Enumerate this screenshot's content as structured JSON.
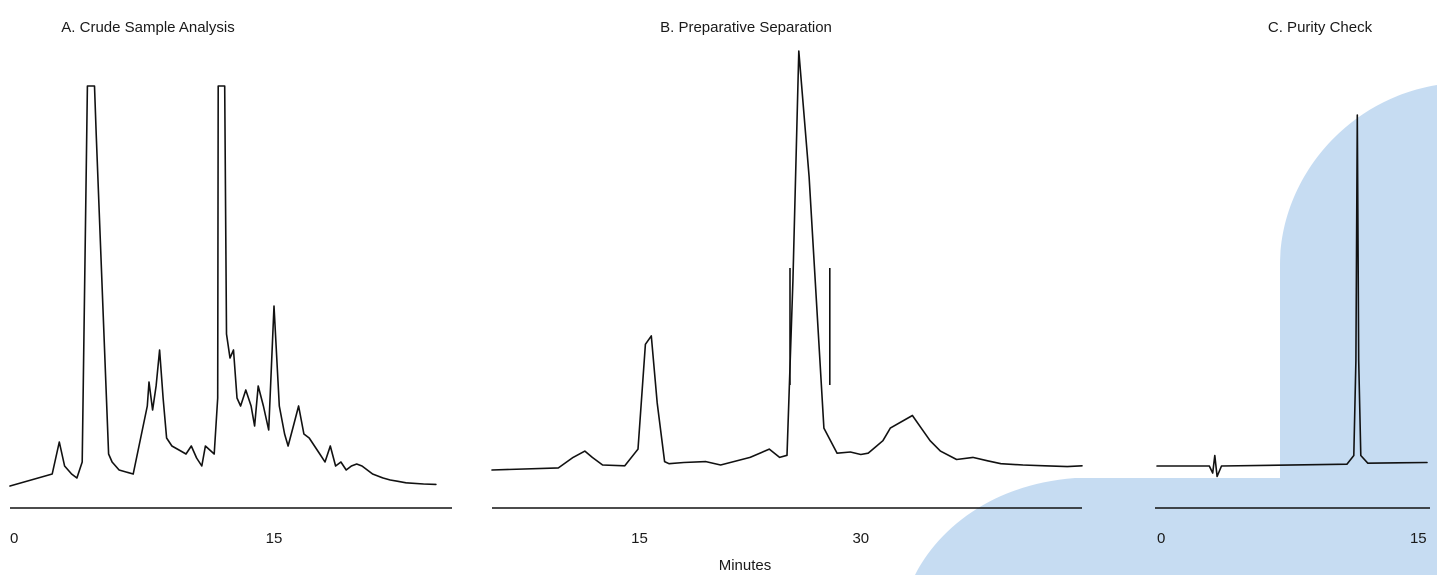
{
  "colors": {
    "trace": "#111111",
    "highlight": "#c6dcf2",
    "text": "#1a1a1a"
  },
  "x_axis_title": "Minutes",
  "chart_data": [
    {
      "type": "line",
      "title": "A. Crude Sample Analysis",
      "xlabel": "",
      "ylabel": "",
      "xlim": [
        0,
        25
      ],
      "ylim": [
        0,
        1.0
      ],
      "ticks": [
        0,
        15
      ],
      "tick_labels": [
        "0",
        "15"
      ],
      "series": [
        {
          "x": [
            0,
            2.4,
            2.8,
            3.1,
            3.5,
            3.8,
            4.1,
            4.4,
            4.8,
            4.9,
            5.6,
            5.8,
            6.2,
            7.0,
            7.8,
            7.9,
            8.1,
            8.3,
            8.5,
            8.7,
            8.9,
            9.2,
            9.6,
            10.0,
            10.3,
            10.6,
            10.9,
            11.1,
            11.6,
            11.8,
            11.83,
            12.2,
            12.3,
            12.5,
            12.7,
            12.9,
            13.1,
            13.4,
            13.7,
            13.9,
            14.1,
            14.4,
            14.7,
            15.0,
            15.3,
            15.6,
            15.8,
            16.1,
            16.4,
            16.7,
            17.0,
            17.3,
            17.6,
            17.9,
            18.2,
            18.5,
            18.8,
            19.1,
            19.4,
            19.7,
            20.0,
            20.3,
            20.6,
            20.9,
            21.2,
            21.6,
            22.0,
            22.5,
            23.5,
            24.2
          ],
          "y": [
            0.0,
            0.03,
            0.11,
            0.05,
            0.03,
            0.02,
            0.06,
            1.0,
            1.0,
            0.88,
            0.08,
            0.06,
            0.04,
            0.03,
            0.2,
            0.26,
            0.19,
            0.25,
            0.34,
            0.22,
            0.12,
            0.1,
            0.09,
            0.08,
            0.1,
            0.07,
            0.05,
            0.1,
            0.08,
            0.22,
            1.0,
            1.0,
            0.38,
            0.32,
            0.34,
            0.22,
            0.2,
            0.24,
            0.2,
            0.15,
            0.25,
            0.2,
            0.14,
            0.45,
            0.2,
            0.13,
            0.1,
            0.15,
            0.2,
            0.13,
            0.12,
            0.1,
            0.08,
            0.06,
            0.1,
            0.05,
            0.06,
            0.04,
            0.05,
            0.055,
            0.05,
            0.04,
            0.03,
            0.025,
            0.02,
            0.015,
            0.012,
            0.008,
            0.005,
            0.004
          ]
        }
      ]
    },
    {
      "type": "line",
      "title": "B. Preparative Separation",
      "xlabel": "",
      "ylabel": "",
      "xlim": [
        5,
        45
      ],
      "ylim": [
        0,
        1.0
      ],
      "ticks": [
        15,
        30
      ],
      "tick_labels": [
        "15",
        "30"
      ],
      "series": [
        {
          "x": [
            5.0,
            9.5,
            10.5,
            11.3,
            11.8,
            12.5,
            14.0,
            14.9,
            15.4,
            15.8,
            16.2,
            16.7,
            17.0,
            18.0,
            19.5,
            20.5,
            22.5,
            23.8,
            24.5,
            25.0,
            25.4,
            25.8,
            26.5,
            27.5,
            28.4,
            29.3,
            30.0,
            30.5,
            31.0,
            31.5,
            32.0,
            33.5,
            34.1,
            34.7,
            35.4,
            36.5,
            37.6,
            38.6,
            39.5,
            41.0,
            42.5,
            44.0,
            45.0
          ],
          "y": [
            0.0,
            0.005,
            0.03,
            0.045,
            0.03,
            0.012,
            0.01,
            0.05,
            0.3,
            0.32,
            0.16,
            0.02,
            0.015,
            0.018,
            0.02,
            0.012,
            0.03,
            0.05,
            0.03,
            0.035,
            0.45,
            1.0,
            0.7,
            0.1,
            0.04,
            0.043,
            0.037,
            0.04,
            0.055,
            0.07,
            0.1,
            0.13,
            0.1,
            0.07,
            0.045,
            0.025,
            0.03,
            0.022,
            0.015,
            0.012,
            0.01,
            0.008,
            0.01
          ]
        }
      ],
      "fraction_cuts": [
        25.2,
        27.9
      ]
    },
    {
      "type": "line",
      "title": "C. Purity Check",
      "xlabel": "",
      "ylabel": "",
      "xlim": [
        0,
        15.5
      ],
      "ylim": [
        0,
        1.0
      ],
      "ticks": [
        0,
        15
      ],
      "tick_labels": [
        "0",
        "15"
      ],
      "series": [
        {
          "x": [
            0,
            3.0,
            3.2,
            3.32,
            3.45,
            3.7,
            10.9,
            11.3,
            11.42,
            11.5,
            11.58,
            11.7,
            12.1,
            15.5
          ],
          "y": [
            0.0,
            0.0,
            -0.02,
            0.03,
            -0.03,
            0.0,
            0.005,
            0.03,
            0.3,
            1.0,
            0.3,
            0.03,
            0.008,
            0.01
          ]
        }
      ]
    }
  ]
}
